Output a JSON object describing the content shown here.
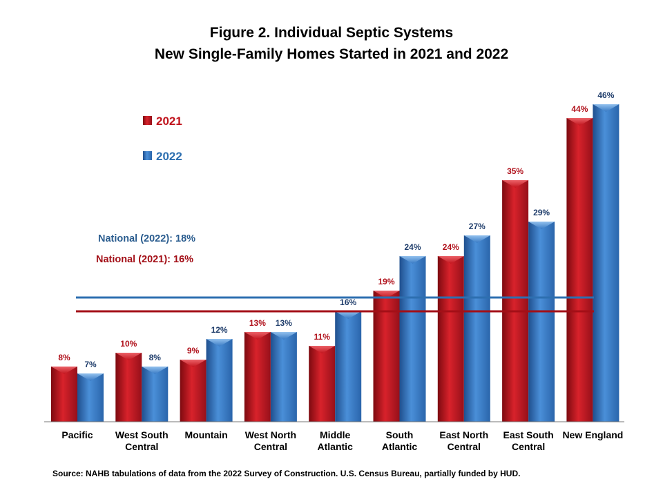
{
  "title_line1": "Figure 2. Individual Septic Systems",
  "title_line2": "New Single-Family Homes Started in 2021 and 2022",
  "source": "Source: NAHB tabulations of data from the 2022 Survey of Construction. U.S. Census Bureau, partially funded by HUD.",
  "colors": {
    "2021": "#c0121b",
    "2022": "#3577c2",
    "national_2021": "#a30f17",
    "national_2022": "#2d6fb0"
  },
  "chart_data": {
    "type": "bar",
    "categories": [
      [
        "Pacific"
      ],
      [
        "West South",
        "Central"
      ],
      [
        "Mountain"
      ],
      [
        "West North",
        "Central"
      ],
      [
        "Middle",
        "Atlantic"
      ],
      [
        "South",
        "Atlantic"
      ],
      [
        "East North",
        "Central"
      ],
      [
        "East South",
        "Central"
      ],
      [
        "New England"
      ]
    ],
    "series": [
      {
        "name": "2021",
        "values": [
          8,
          10,
          9,
          13,
          11,
          19,
          24,
          35,
          44
        ],
        "labels": [
          "8%",
          "10%",
          "9%",
          "13%",
          "11%",
          "19%",
          "24%",
          "35%",
          "44%"
        ]
      },
      {
        "name": "2022",
        "values": [
          7,
          8,
          12,
          13,
          16,
          24,
          27,
          29,
          46
        ],
        "labels": [
          "7%",
          "8%",
          "12%",
          "13%",
          "16%",
          "24%",
          "27%",
          "29%",
          "46%"
        ]
      }
    ],
    "reference_lines": [
      {
        "label": "National (2022): 18%",
        "value": 18,
        "series": "2022"
      },
      {
        "label": "National (2021): 16%",
        "value": 16,
        "series": "2021"
      }
    ],
    "ylim": [
      0,
      50
    ],
    "legend": [
      "2021",
      "2022"
    ],
    "legend_position": "top-left"
  }
}
